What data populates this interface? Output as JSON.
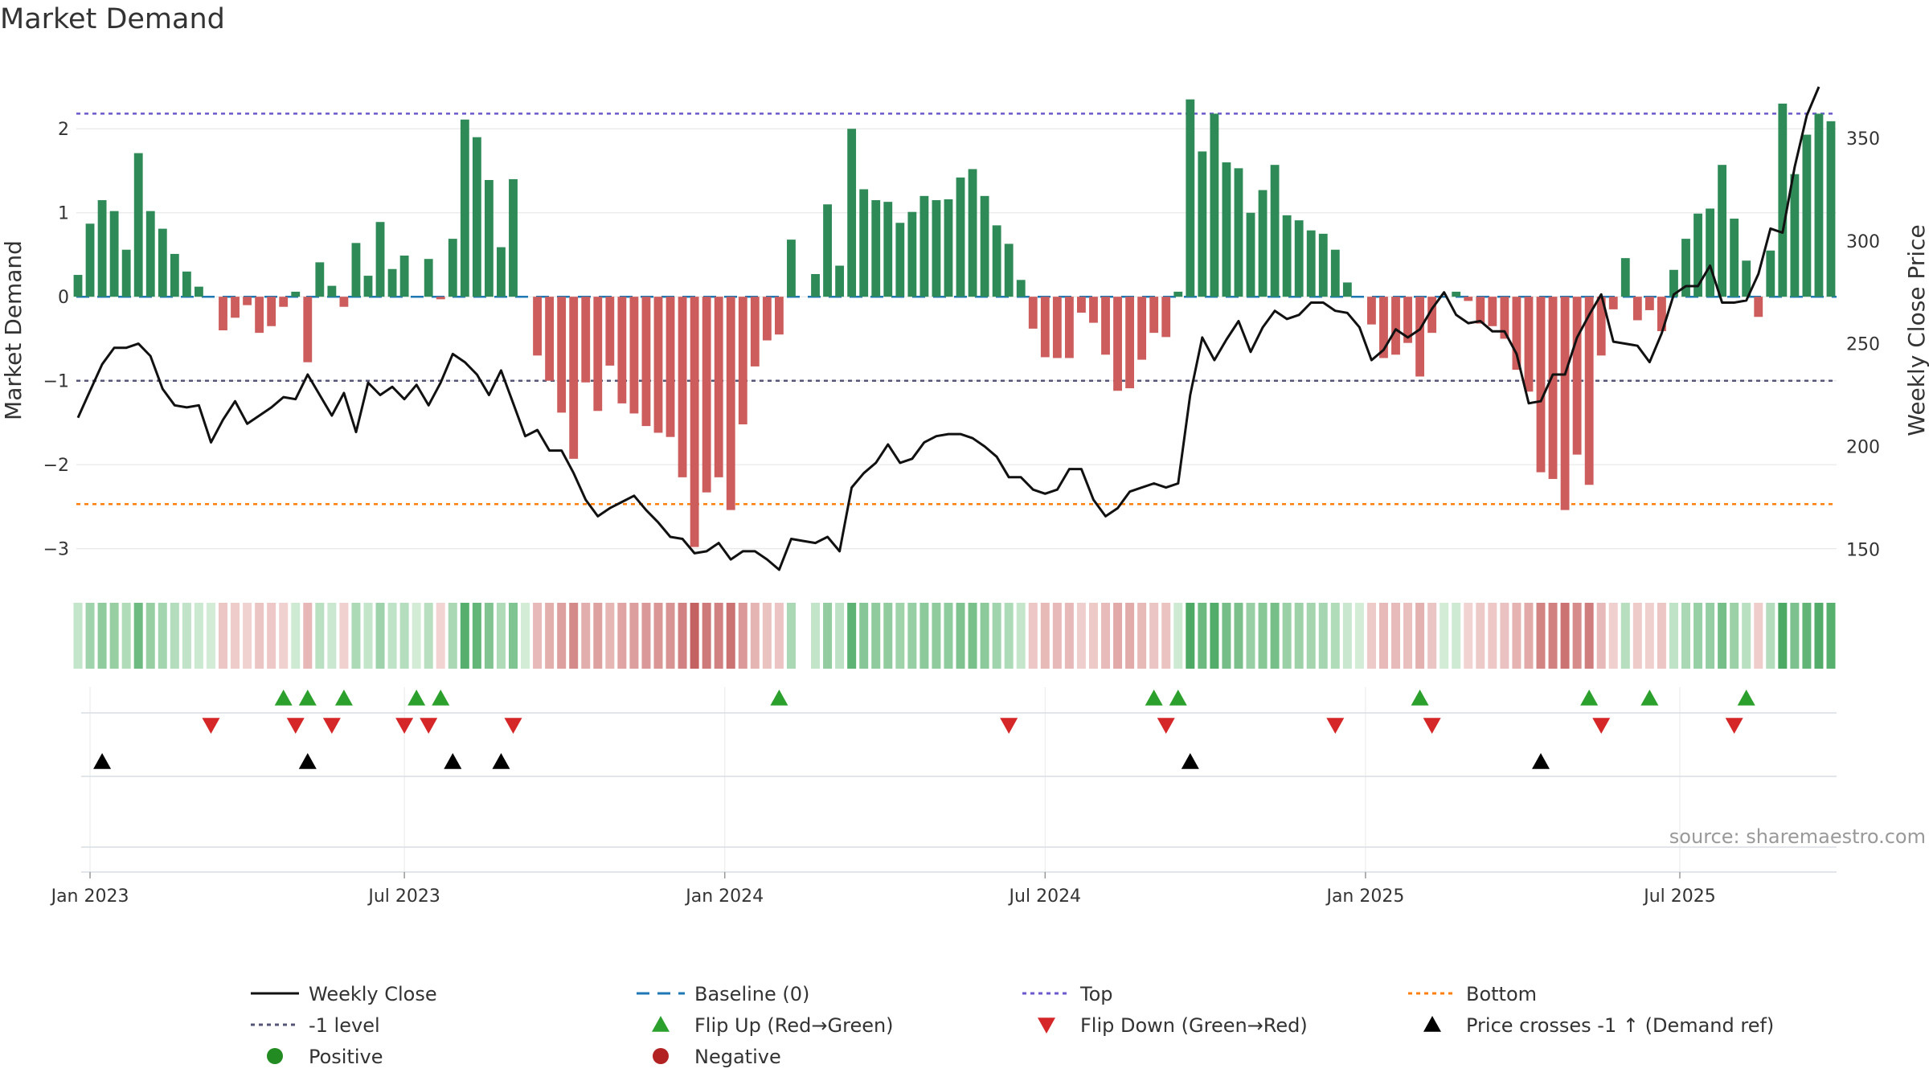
{
  "title": "Market Demand",
  "source": "source: sharemaestro.com",
  "colors": {
    "positive_bar": "#2e8b57",
    "negative_bar": "#cd5c5c",
    "price_line": "#111111",
    "baseline": "#1f77b4",
    "top": "#6a5acd",
    "minus_one": "#555577",
    "bottom": "#ff7f0e",
    "flip_up": "#2ca02c",
    "flip_down": "#d62728",
    "cross": "#000000"
  },
  "chart_data": {
    "type": "bar+line",
    "title": "Market Demand",
    "ylabel": "Market Demand",
    "y2label": "Weekly Close Price",
    "ylim": [
      -3.3,
      2.5
    ],
    "y2lim": [
      138,
      375
    ],
    "yticks": [
      2,
      1,
      0,
      -1,
      -2,
      -3
    ],
    "y2ticks": [
      350,
      300,
      250,
      200,
      150
    ],
    "top_level": 2.18,
    "bottom_level": -2.47,
    "minus_one_level": -1,
    "baseline_level": 0,
    "x_start": "2023-01-02",
    "week_count": 146,
    "gap_week": 60,
    "xtick_labels": [
      {
        "label": "Jan 2023",
        "week": 1
      },
      {
        "label": "Jul 2023",
        "week": 27
      },
      {
        "label": "Jan 2024",
        "week": 53.5
      },
      {
        "label": "Jul 2024",
        "week": 80
      },
      {
        "label": "Jan 2025",
        "week": 106.5
      },
      {
        "label": "Jul 2025",
        "week": 132.5
      }
    ],
    "demand": [
      0.26,
      0.87,
      1.15,
      1.02,
      0.56,
      1.71,
      1.02,
      0.81,
      0.51,
      0.3,
      0.12,
      0.0,
      -0.4,
      -0.25,
      -0.1,
      -0.43,
      -0.35,
      -0.12,
      0.06,
      -0.78,
      0.41,
      0.13,
      -0.12,
      0.64,
      0.25,
      0.89,
      0.33,
      0.49,
      0.0,
      0.45,
      -0.03,
      0.69,
      2.11,
      1.9,
      1.39,
      0.59,
      1.4,
      0.0,
      -0.7,
      -1.0,
      -1.38,
      -1.93,
      -1.02,
      -1.36,
      -0.82,
      -1.27,
      -1.39,
      -1.54,
      -1.62,
      -1.67,
      -2.15,
      -2.98,
      -2.33,
      -2.15,
      -2.54,
      -1.52,
      -0.83,
      -0.52,
      -0.45,
      0.68,
      0,
      0.27,
      1.1,
      0.37,
      2.0,
      1.28,
      1.15,
      1.13,
      0.88,
      1.01,
      1.2,
      1.15,
      1.16,
      1.42,
      1.52,
      1.2,
      0.85,
      0.63,
      0.2,
      -0.38,
      -0.72,
      -0.73,
      -0.73,
      -0.19,
      -0.31,
      -0.69,
      -1.12,
      -1.09,
      -0.75,
      -0.43,
      -0.48,
      0.06,
      2.35,
      1.73,
      2.18,
      1.6,
      1.53,
      1.0,
      1.27,
      1.57,
      0.97,
      0.91,
      0.79,
      0.75,
      0.56,
      0.17,
      0.0,
      -0.33,
      -0.73,
      -0.69,
      -0.55,
      -0.95,
      -0.43,
      0.0,
      0.06,
      -0.05,
      -0.32,
      -0.35,
      -0.5,
      -0.87,
      -1.13,
      -2.09,
      -2.17,
      -2.54,
      -1.88,
      -2.24,
      -0.7,
      -0.15,
      0.46,
      -0.28,
      -0.16,
      -0.41,
      0.32,
      0.69,
      0.99,
      1.05,
      1.57,
      0.93,
      0.43,
      -0.24,
      0.55,
      2.3,
      1.46,
      1.93,
      2.18,
      2.09
    ],
    "close": [
      214,
      227,
      240,
      248,
      248,
      250,
      244,
      228,
      220,
      219,
      220,
      202,
      213,
      222,
      211,
      215,
      219,
      224,
      223,
      235,
      225,
      215,
      226,
      207,
      231,
      225,
      229,
      223,
      230,
      220,
      231,
      245,
      241,
      235,
      225,
      237,
      221,
      205,
      208,
      198,
      198,
      187,
      174,
      166,
      170,
      173,
      176,
      169,
      163,
      156,
      155,
      148,
      149,
      153,
      145,
      149,
      149,
      145,
      140,
      155,
      154,
      153,
      156,
      149,
      180,
      187,
      192,
      201,
      192,
      194,
      202,
      205,
      206,
      206,
      204,
      200,
      195,
      185,
      185,
      179,
      177,
      179,
      189,
      189,
      174,
      166,
      170,
      178,
      180,
      182,
      180,
      182,
      225,
      253,
      242,
      252,
      261,
      246,
      258,
      266,
      262,
      264,
      270,
      270,
      266,
      265,
      258,
      242,
      247,
      257,
      253,
      257,
      267,
      275,
      264,
      260,
      261,
      256,
      256,
      245,
      221,
      222,
      235,
      235,
      253,
      264,
      274,
      251,
      250,
      249,
      241,
      255,
      274,
      278,
      278,
      288,
      270,
      270,
      271,
      284,
      306,
      304,
      336,
      361,
      375
    ],
    "flip_up_weeks": [
      17,
      19,
      22,
      28,
      30,
      58,
      89,
      91,
      111,
      125,
      130,
      138
    ],
    "flip_down_weeks": [
      11,
      18,
      21,
      27,
      29,
      36,
      77,
      90,
      104,
      112,
      126,
      137
    ],
    "price_cross_weeks": [
      2,
      19,
      31,
      35,
      92,
      121
    ]
  },
  "legend": [
    {
      "label": "Weekly Close",
      "kind": "solid-line",
      "color": "#111111"
    },
    {
      "label": "Baseline (0)",
      "kind": "dashed-line",
      "color": "#1f77b4"
    },
    {
      "label": "Top",
      "kind": "dotted-line",
      "color": "#6a5acd"
    },
    {
      "label": "Bottom",
      "kind": "dotted-line",
      "color": "#ff7f0e"
    },
    {
      "label": "-1 level",
      "kind": "dotted-line",
      "color": "#555577"
    },
    {
      "label": "Flip Up (Red→Green)",
      "kind": "triangle-up",
      "color": "#2ca02c"
    },
    {
      "label": "Flip Down (Green→Red)",
      "kind": "triangle-down",
      "color": "#d62728"
    },
    {
      "label": "Price crosses -1 ↑ (Demand ref)",
      "kind": "triangle-up",
      "color": "#000000"
    },
    {
      "label": "Positive",
      "kind": "circle",
      "color": "#228b22"
    },
    {
      "label": "Negative",
      "kind": "circle",
      "color": "#b22222"
    }
  ]
}
